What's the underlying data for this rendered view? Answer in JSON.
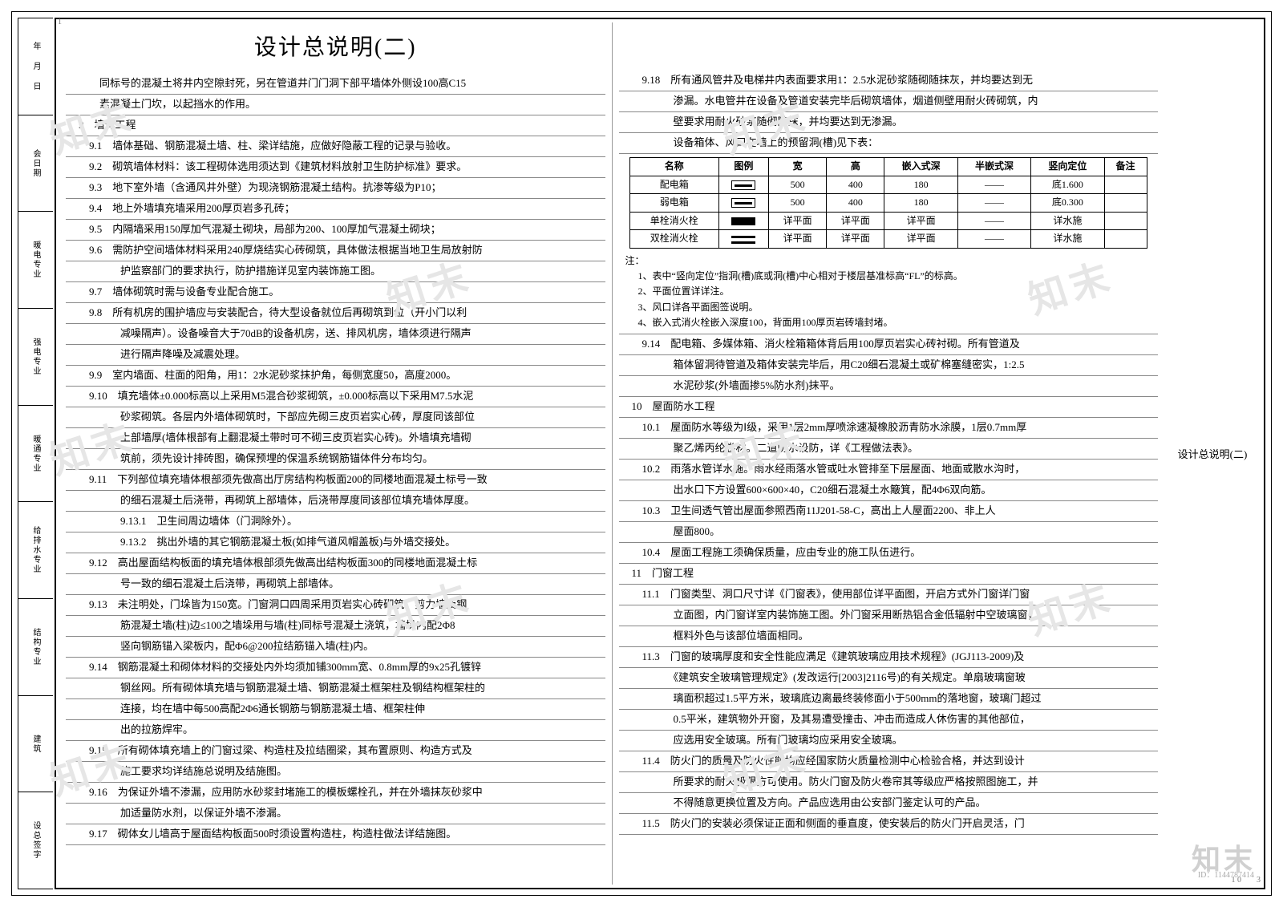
{
  "title": "设计总说明(二)",
  "side_labels": [
    "年 月 日",
    "会日期",
    "暖电专业",
    "强电专业",
    "暖通专业",
    "给排水专业",
    "结构专业",
    "建筑",
    "设总签字"
  ],
  "left_lines": [
    "　　同标号的混凝土将井内空隙封死，另在管道井门门洞下部平墙体外侧设100高C15",
    "　　素混凝土门坎，以起挡水的作用。",
    "9　墙体工程",
    "　9.1　墙体基础、钢筋混凝土墙、柱、梁详结施，应做好隐蔽工程的记录与验收。",
    "　9.2　砌筑墙体材料：该工程砌体选用须达到《建筑材料放射卫生防护标准》要求。",
    "　9.3　地下室外墙（含通风井外壁）为现浇钢筋混凝土结构。抗渗等级为P10；",
    "　9.4　地上外墙填充墙采用200厚页岩多孔砖；",
    "　9.5　内隔墙采用150厚加气混凝土砌块，局部为200、100厚加气混凝土砌块；",
    "　9.6　需防护空间墙体材料采用240厚烧结实心砖砌筑，具体做法根据当地卫生局放射防",
    "　　　　护监察部门的要求执行，防护措施详见室内装饰施工图。",
    "　9.7　墙体砌筑时需与设备专业配合施工。",
    "　9.8　所有机房的围护墙应与安装配合，待大型设备就位后再砌筑到位（开小门以利",
    "　　　　减噪隔声）。设备噪音大于70dB的设备机房，送、排风机房，墙体须进行隔声",
    "　　　　进行隔声降噪及减震处理。",
    "　9.9　室内墙面、柱面的阳角，用1：2水泥砂浆抹护角，每侧宽度50，高度2000。",
    "　9.10　填充墙体±0.000标高以上采用M5混合砂浆砌筑，±0.000标高以下采用M7.5水泥",
    "　　　　砂浆砌筑。各层内外墙体砌筑时，下部应先砌三皮页岩实心砖，厚度同该部位",
    "　　　　上部墙厚(墙体根部有上翻混凝土带时可不砌三皮页岩实心砖)。外墙填充墙砌",
    "　　　　筑前，须先设计排砖图，确保预埋的保温系统钢筋锚体件分布均匀。",
    "　9.11　下列部位填充墙体根部须先做高出厅房结构构板面200的同楼地面混凝土标号一致",
    "　　　　的细石混凝土后浇带，再砌筑上部墙体，后浇带厚度同该部位填充墙体厚度。",
    "　　　　9.13.1　卫生间周边墙体（门洞除外）。",
    "　　　　9.13.2　挑出外墙的其它钢筋混凝土板(如排气道风帽盖板)与外墙交接处。",
    "　9.12　高出屋面结构板面的填充墙体根部须先做高出结构板面300的同楼地面混凝土标",
    "　　　　号一致的细石混凝土后浇带，再砌筑上部墙体。",
    "　9.13　未注明处，门垛皆为150宽。门窗洞口四周采用页岩实心砖砌筑。剪力墙及钢",
    "　　　　筋混凝土墙(柱)边≤100之墙垛用与墙(柱)同标号混凝土浇筑，墙垛内配2Φ8",
    "　　　　竖向钢筋锚入梁板内，配Φ6@200拉结筋锚入墙(柱)内。",
    "　9.14　钢筋混凝土和砌体材料的交接处内外均须加铺300mm宽、0.8mm厚的9x25孔镀锌",
    "　　　　钢丝网。所有砌体填充墙与钢筋混凝土墙、钢筋混凝土框架柱及钢结构框架柱的",
    "　　　　连接，均在墙中每500高配2Φ6通长钢筋与钢筋混凝土墙、框架柱伸",
    "　　　　出的拉筋焊牢。",
    "　9.15　所有砌体填充墙上的门窗过梁、构造柱及拉结圈梁，其布置原则、构造方式及",
    "　　　　施工要求均详结施总说明及结施图。",
    "　9.16　为保证外墙不渗漏，应用防水砂浆封堵施工的模板螺栓孔，并在外墙抹灰砂浆中",
    "　　　　加适量防水剂，以保证外墙不渗漏。",
    "　9.17　砌体女儿墙高于屋面结构板面500时须设置构造柱，构造柱做法详结施图。"
  ],
  "right_opening_lines": [
    "　9.18　所有通风管井及电梯井内表面要求用1：2.5水泥砂浆随砌随抹灰，并均要达到无",
    "　　　　渗漏。水电管井在设备及管道安装完毕后砌筑墙体，烟道侧壁用耐火砖砌筑，内",
    "　　　　壁要求用耐火砂浆随砌随抹，并均要达到无渗漏。",
    "　　　　设备箱体、风口在墙上的预留洞(槽)见下表："
  ],
  "table": {
    "headers": [
      "名称",
      "图例",
      "宽",
      "高",
      "嵌入式深",
      "半嵌式深",
      "竖向定位",
      "备注"
    ],
    "rows": [
      {
        "name": "配电箱",
        "icon": "box",
        "w": "500",
        "h": "400",
        "d1": "180",
        "d2": "——",
        "pos": "底1.600",
        "note": ""
      },
      {
        "name": "弱电箱",
        "icon": "box",
        "w": "500",
        "h": "400",
        "d1": "180",
        "d2": "——",
        "pos": "底0.300",
        "note": ""
      },
      {
        "name": "单栓消火栓",
        "icon": "single",
        "w": "详平面",
        "h": "详平面",
        "d1": "详平面",
        "d2": "——",
        "pos": "详水施",
        "note": ""
      },
      {
        "name": "双栓消火栓",
        "icon": "double",
        "w": "详平面",
        "h": "详平面",
        "d1": "详平面",
        "d2": "——",
        "pos": "详水施",
        "note": ""
      }
    ]
  },
  "table_notes_head": "注：",
  "table_notes": [
    "1、表中“竖向定位”指洞(槽)底或洞(槽)中心相对于楼层基准标高“FL”的标高。",
    "2、平面位置详详注。",
    "3、风口详各平面图签说明。",
    "4、嵌入式消火栓嵌入深度100，背面用100厚页岩砖墙封堵。"
  ],
  "right_mid_lines": [
    "　9.14　配电箱、多媒体箱、消火栓箱箱体背后用100厚页岩实心砖衬砌。所有管道及",
    "　　　　箱体留洞待管道及箱体安装完毕后，用C20细石混凝土或矿棉塞缝密实，1:2.5",
    "　　　　水泥砂浆(外墙面掺5%防水剂)抹平。",
    "10　屋面防水工程",
    "　10.1　屋面防水等级为Ⅰ级，采用1层2mm厚喷涂速凝橡胶沥青防水涂膜，1层0.7mm厚",
    "　　　　聚乙烯丙纶卷材。二道防水设防，详《工程做法表》。",
    "　10.2　雨落水管详水施。雨水经雨落水管或吐水管排至下层屋面、地面或散水沟时，",
    "　　　　出水口下方设置600×600×40，C20细石混凝土水簸箕，配4Φ6双向筋。",
    "　10.3　卫生间透气管出屋面参照西南11J201-58-C，高出上人屋面2200、非上人",
    "　　　　屋面800。",
    "　10.4　屋面工程施工须确保质量，应由专业的施工队伍进行。",
    "11　门窗工程",
    "　11.1　门窗类型、洞口尺寸详《门窗表》，使用部位详平面图，开启方式外门窗详门窗",
    "　　　　立面图，内门窗详室内装饰施工图。外门窗采用断热铝合金低辐射中空玻璃窗，",
    "　　　　框料外色与该部位墙面相同。",
    "　11.3　门窗的玻璃厚度和安全性能应满足《建筑玻璃应用技术规程》(JGJ113-2009)及",
    "　　　　《建筑安全玻璃管理规定》(发改运行[2003]2116号)的有关规定。单扇玻璃窗玻",
    "　　　　璃面积超过1.5平方米，玻璃底边离最终装修面小于500mm的落地窗，玻璃门超过",
    "　　　　0.5平米，建筑物外开窗，及其易遭受撞击、冲击而造成人休伤害的其他部位，",
    "　　　　应选用安全玻璃。所有门玻璃均应采用安全玻璃。",
    "　11.4　防火门的质量及防火性能均应经国家防火质量检测中心检验合格，并达到设计",
    "　　　　所要求的耐火极限方可使用。防火门窗及防火卷帘其等级应严格按照图施工，并",
    "　　　　不得随意更换位置及方向。产品应选用由公安部门鉴定认可的产品。",
    "　11.5　防火门的安装必须保证正面和侧面的垂直度，使安装后的防火门开启灵活，门"
  ],
  "right_caption": "设计总说明(二)",
  "drawing_id": "ID：1144787414",
  "watermark_text": "知末",
  "corner_tl": "1",
  "corner_br_a": "1 0",
  "corner_br_b": "3"
}
